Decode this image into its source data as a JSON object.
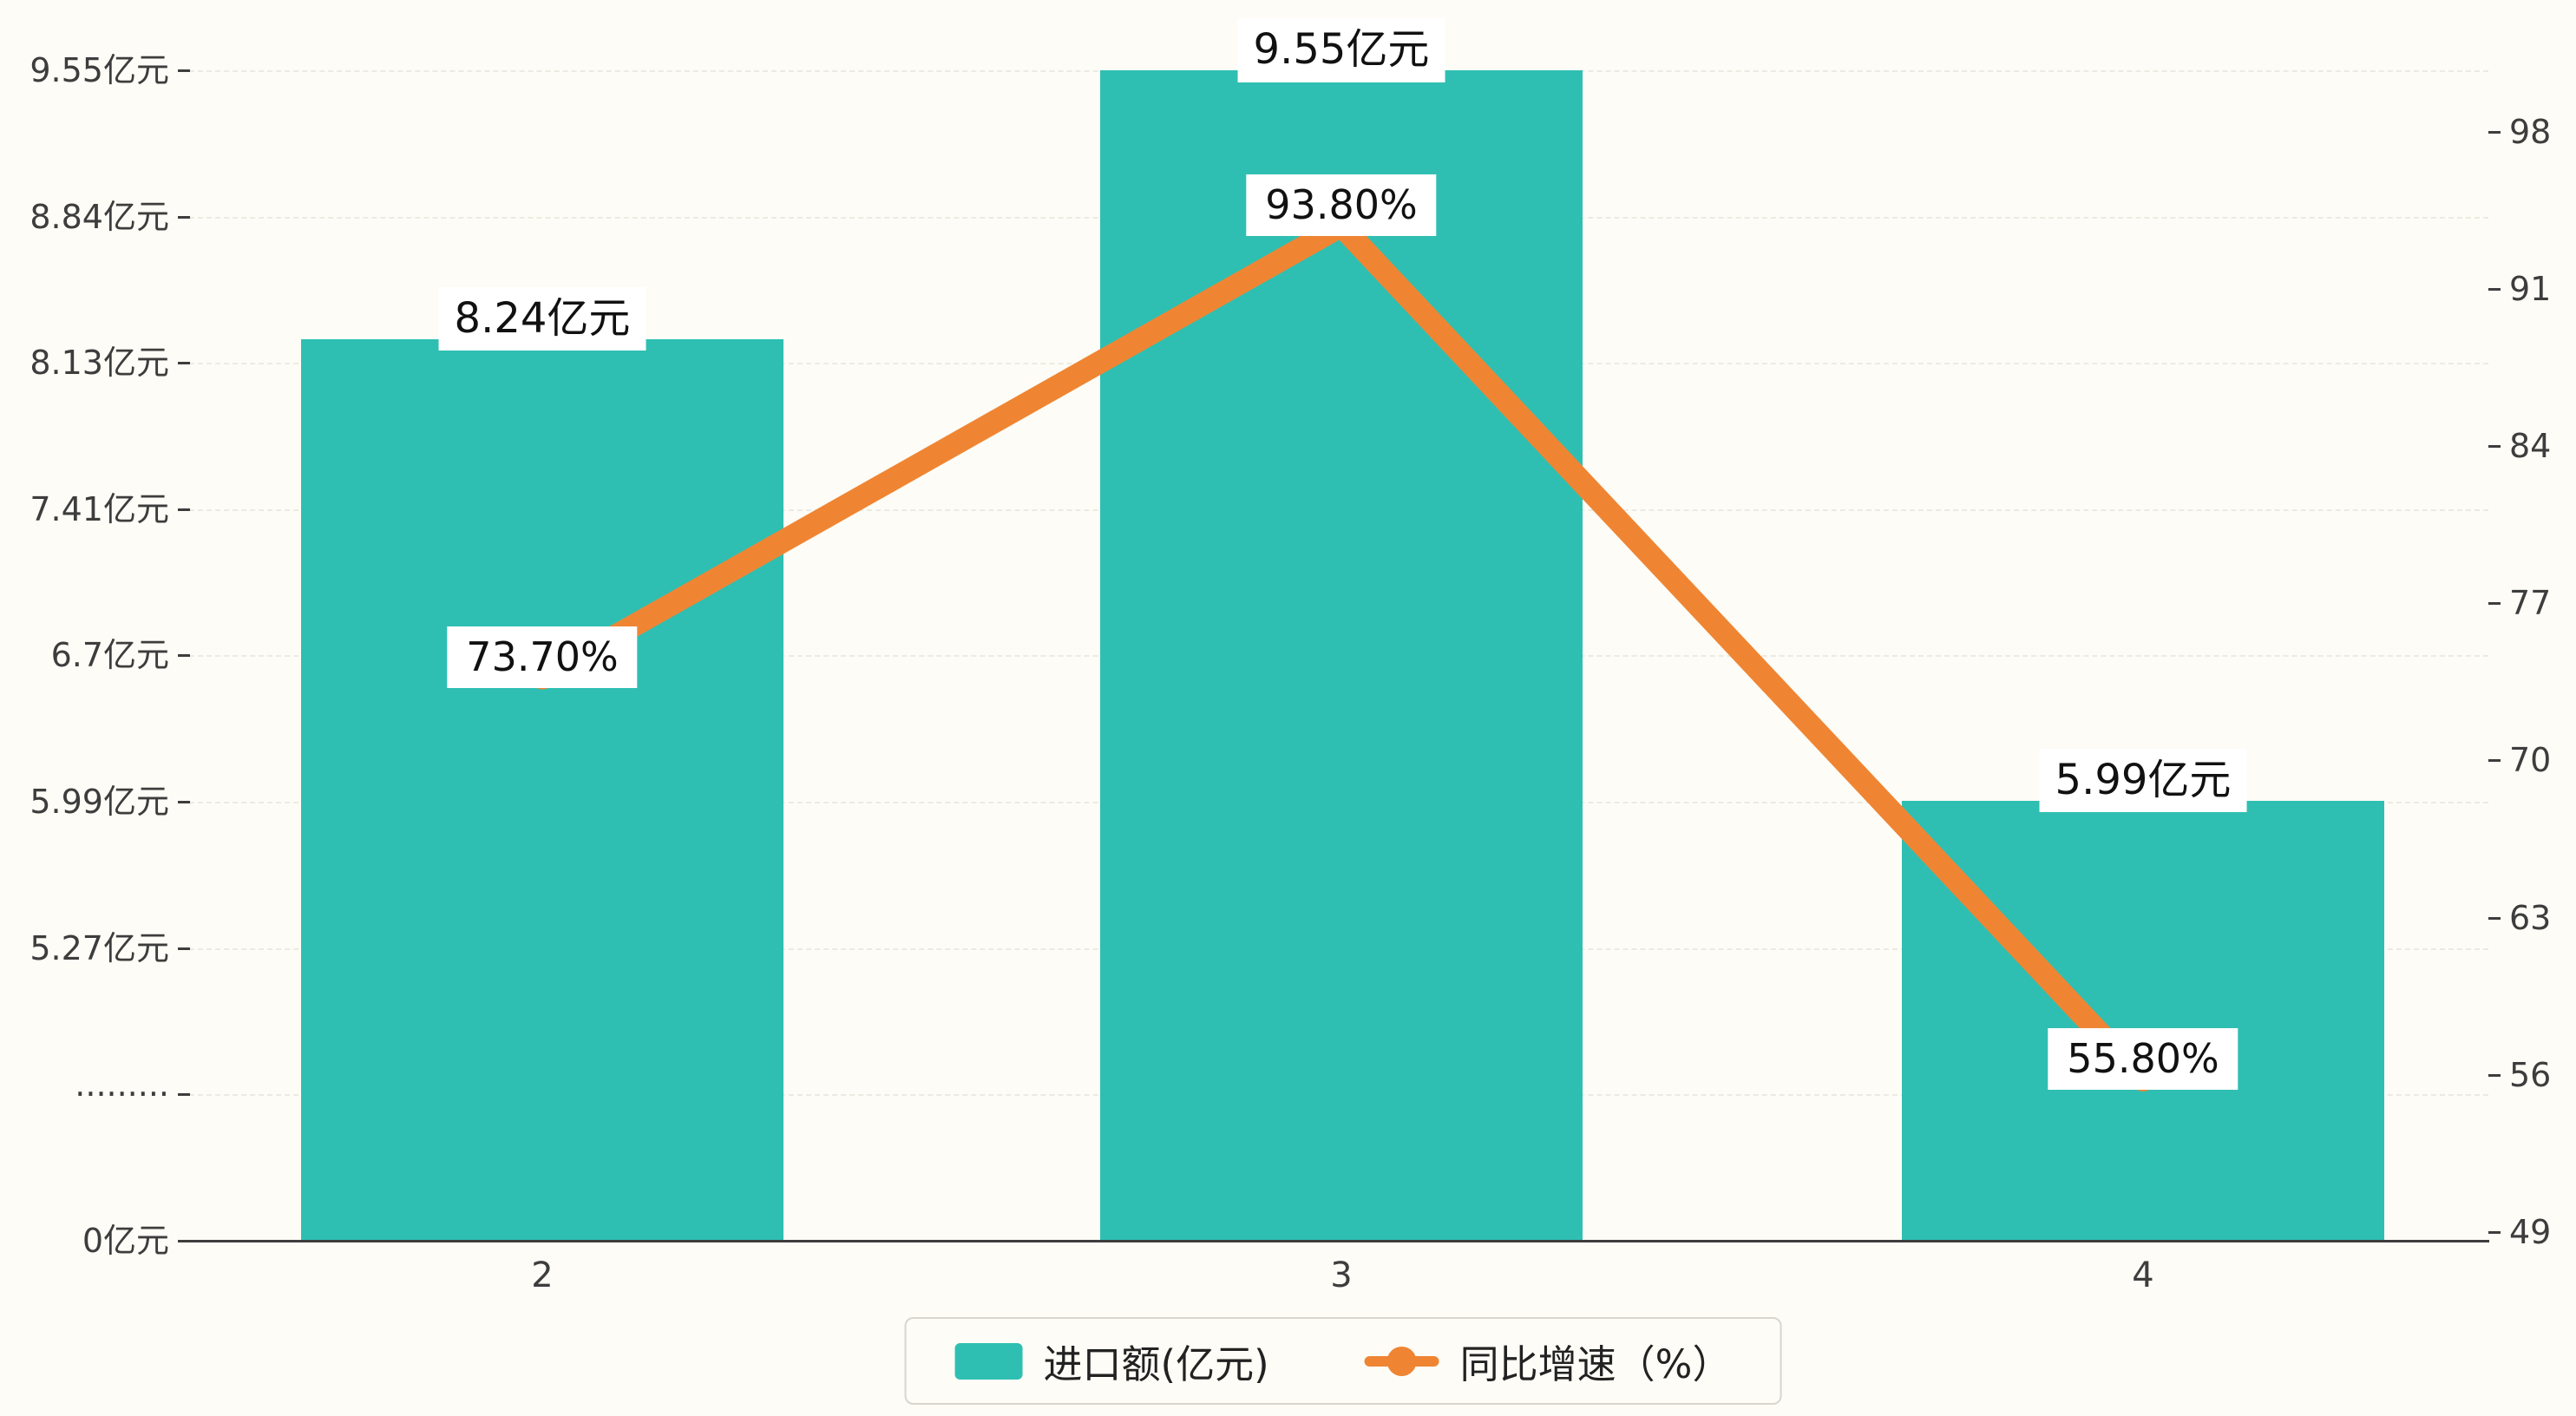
{
  "chart_data": {
    "type": "bar",
    "subtype": "bar-line-combo",
    "categories": [
      "2",
      "3",
      "4"
    ],
    "series": [
      {
        "name": "进口额(亿元)",
        "type": "bar",
        "color": "#2fbfb2",
        "values": [
          8.24,
          9.55,
          5.99
        ],
        "labels": [
          "8.24亿元",
          "9.55亿元",
          "5.99亿元"
        ]
      },
      {
        "name": "同比增速（%）",
        "type": "line",
        "color": "#ef8533",
        "values": [
          73.7,
          93.8,
          55.8
        ],
        "labels": [
          "73.70%",
          "93.80%",
          "55.80%"
        ]
      }
    ],
    "left_axis": {
      "unit": "亿元",
      "ticks_bottom_to_top": [
        "0亿元",
        "·········",
        "5.27亿元",
        "5.99亿元",
        "6.7亿元",
        "7.41亿元",
        "8.13亿元",
        "8.84亿元",
        "9.55亿元"
      ]
    },
    "right_axis": {
      "min": 49,
      "max": 98,
      "ticks_bottom_to_top": [
        "49",
        "56",
        "63",
        "70",
        "77",
        "84",
        "91",
        "98"
      ]
    },
    "legend": {
      "position": "bottom",
      "items": [
        "进口额(亿元)",
        "同比增速（%）"
      ]
    },
    "grid": "dashed-horizontal",
    "title": "",
    "xlabel": "",
    "ylabel": ""
  },
  "colors": {
    "bar": "#2fbfb2",
    "line": "#ef8533",
    "axis_text": "#3d3d3d",
    "background": "#fdfcf6",
    "label_box": "#ffffff"
  }
}
